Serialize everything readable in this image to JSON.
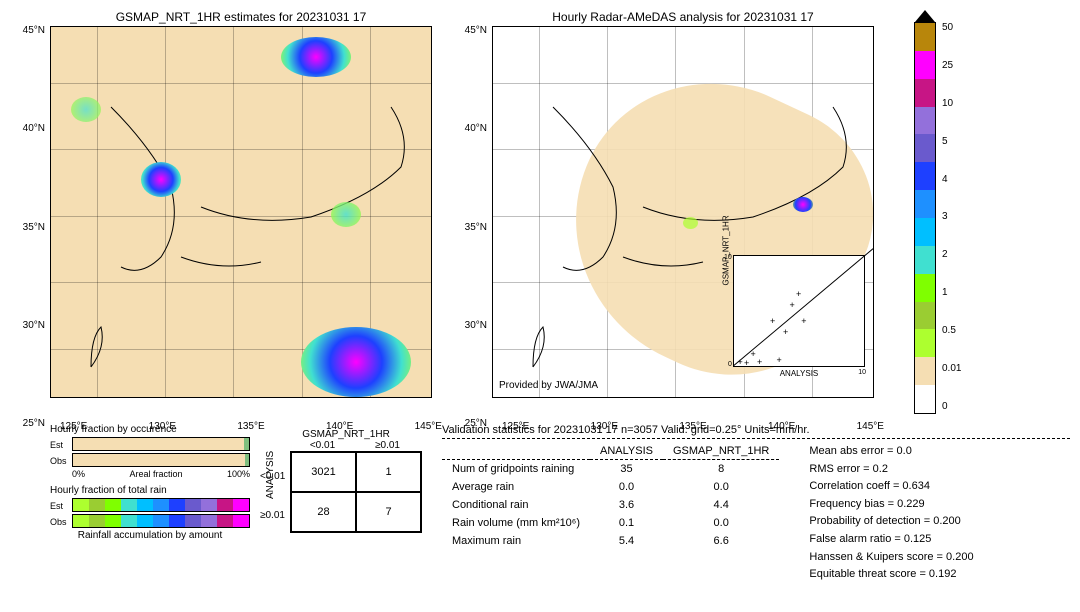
{
  "left_map": {
    "title": "GSMAP_NRT_1HR estimates for 20231031 17",
    "bg_color": "#f5deb3",
    "lat_ticks": [
      "45°N",
      "40°N",
      "35°N",
      "30°N",
      "25°N"
    ],
    "lon_ticks": [
      "125°E",
      "130°E",
      "135°E",
      "140°E",
      "145°E"
    ]
  },
  "right_map": {
    "title": "Hourly Radar-AMeDAS analysis for 20231031 17",
    "bg_color": "#ffffff",
    "lat_ticks": [
      "45°N",
      "40°N",
      "35°N",
      "30°N",
      "25°N"
    ],
    "lon_ticks": [
      "125°E",
      "130°E",
      "135°E",
      "140°E",
      "145°E"
    ],
    "provided": "Provided by JWA/JMA"
  },
  "colorbar": {
    "colors": [
      "#b8860b",
      "#ff00ff",
      "#c71585",
      "#9370db",
      "#6a5acd",
      "#1e40ff",
      "#1e90ff",
      "#00bfff",
      "#40e0d0",
      "#7fff00",
      "#9acd32",
      "#adff2f",
      "#f5deb3",
      "#ffffff"
    ],
    "labels": [
      "50",
      "25",
      "10",
      "5",
      "4",
      "3",
      "2",
      "1",
      "0.5",
      "0.01",
      "0"
    ]
  },
  "occurrence": {
    "title": "Hourly fraction by occurence",
    "est_label": "Est",
    "obs_label": "Obs",
    "est_fill_pct": 3,
    "obs_fill_pct": 2,
    "axis_left": "0%",
    "axis_center": "Areal fraction",
    "axis_right": "100%"
  },
  "total_rain": {
    "title": "Hourly fraction of total rain",
    "est_label": "Est",
    "obs_label": "Obs",
    "footer": "Rainfall accumulation by amount",
    "colors": [
      "#adff2f",
      "#9acd32",
      "#7fff00",
      "#40e0d0",
      "#00bfff",
      "#1e90ff",
      "#1e40ff",
      "#6a5acd",
      "#9370db",
      "#c71585",
      "#ff00ff"
    ]
  },
  "contingency": {
    "title": "GSMAP_NRT_1HR",
    "col_headers": [
      "<0.01",
      "≥0.01"
    ],
    "row_headers": [
      "<0.01",
      "≥0.01"
    ],
    "ylabel": "ANALYSIS",
    "cells": [
      [
        "3021",
        "1"
      ],
      [
        "28",
        "7"
      ]
    ]
  },
  "stats": {
    "title": "Validation statistics for 20231031 17  n=3057 Valid. grid=0.25°  Units=mm/hr.",
    "table": {
      "col1": "ANALYSIS",
      "col2": "GSMAP_NRT_1HR",
      "rows": [
        {
          "label": "Num of gridpoints raining",
          "v1": "35",
          "v2": "8"
        },
        {
          "label": "Average rain",
          "v1": "0.0",
          "v2": "0.0"
        },
        {
          "label": "Conditional rain",
          "v1": "3.6",
          "v2": "4.4"
        },
        {
          "label": "Rain volume (mm km²10⁶)",
          "v1": "0.1",
          "v2": "0.0"
        },
        {
          "label": "Maximum rain",
          "v1": "5.4",
          "v2": "6.6"
        }
      ]
    },
    "metrics": [
      "Mean abs error =    0.0",
      "RMS error =    0.2",
      "Correlation coeff =  0.634",
      "Frequency bias =  0.229",
      "Probability of detection =  0.200",
      "False alarm ratio =  0.125",
      "Hanssen & Kuipers score =  0.200",
      "Equitable threat score =  0.192"
    ]
  },
  "scatter": {
    "ylabel": "GSMAP_NRT_1HR",
    "xlabel": "ANALYSIS",
    "range": [
      0,
      10
    ],
    "ticks": [
      "0",
      "2",
      "4",
      "6",
      "8",
      "10"
    ],
    "points": [
      [
        0.5,
        0.3
      ],
      [
        1.0,
        0.2
      ],
      [
        1.5,
        1.0
      ],
      [
        2.0,
        0.3
      ],
      [
        3.0,
        4.0
      ],
      [
        3.5,
        0.5
      ],
      [
        4.0,
        3.0
      ],
      [
        4.5,
        5.5
      ],
      [
        5.0,
        6.5
      ],
      [
        5.4,
        4.0
      ]
    ]
  }
}
